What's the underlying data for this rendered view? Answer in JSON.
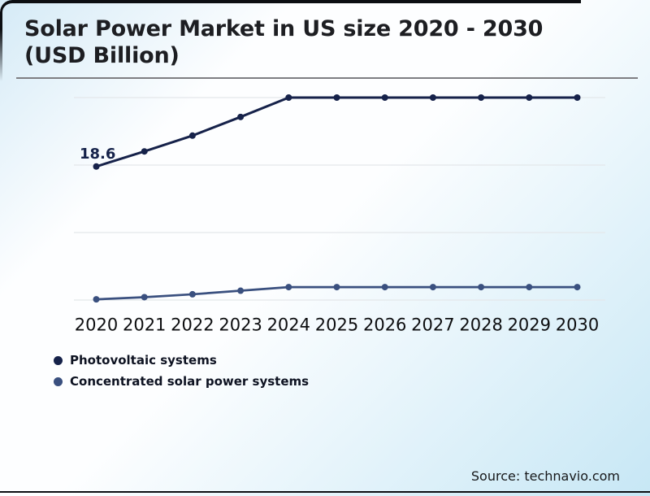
{
  "card": {
    "title": "Solar Power Market in US size 2020 - 2030 (USD Billion)",
    "source": "Source: technavio.com"
  },
  "colors": {
    "photovoltaic_series": "#16224a",
    "concentrated_series": "#3a507f",
    "gridline": "#e4e7ea",
    "frame": "#0c0e12",
    "title_rule": "#7e7e82"
  },
  "chart_data": {
    "type": "line",
    "title": "Solar Power Market in US size 2020 - 2030 (USD Billion)",
    "categories": [
      "2020",
      "2021",
      "2022",
      "2023",
      "2024",
      "2025",
      "2026",
      "2027",
      "2028",
      "2029",
      "2030"
    ],
    "series": [
      {
        "name": "Photovoltaic systems",
        "color": "#16224a",
        "values": [
          18.6,
          20.7,
          22.9,
          25.5,
          28.2,
          28.2,
          28.2,
          28.2,
          28.2,
          28.2,
          28.2
        ]
      },
      {
        "name": "Concentrated solar power systems",
        "color": "#3a507f",
        "values": [
          0.1,
          0.4,
          0.8,
          1.3,
          1.8,
          1.8,
          1.8,
          1.8,
          1.8,
          1.8,
          1.8
        ]
      }
    ],
    "data_label": {
      "series": "Photovoltaic systems",
      "category": "2020",
      "text": "18.6"
    },
    "xlabel": "",
    "ylabel": "",
    "ylim": [
      0,
      30
    ],
    "grid": true,
    "y_axis_labels_visible": false,
    "legend_position": "bottom-left"
  }
}
